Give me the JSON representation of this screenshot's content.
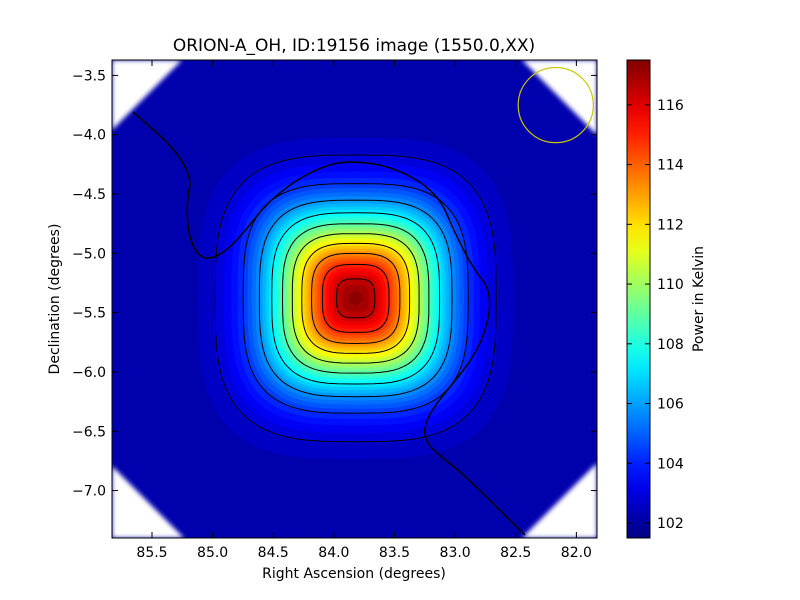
{
  "chart_data": {
    "type": "heatmap",
    "title": "ORION-A_OH, ID:19156 image (1550.0,XX)",
    "xlabel": "Right Ascension (degrees)",
    "ylabel": "Declination (degrees)",
    "colorbar_label": "Power in Kelvin",
    "colormap": "jet",
    "xlim": [
      85.83,
      81.83
    ],
    "ylim": [
      -7.4,
      -3.37
    ],
    "x_ticks": [
      85.5,
      85.0,
      84.5,
      84.0,
      83.5,
      83.0,
      82.5,
      82.0
    ],
    "x_tick_labels": [
      "85.5",
      "85.0",
      "84.5",
      "84.0",
      "83.5",
      "83.0",
      "82.5",
      "82.0"
    ],
    "y_ticks": [
      -3.5,
      -4.0,
      -4.5,
      -5.0,
      -5.5,
      -6.0,
      -6.5,
      -7.0
    ],
    "y_tick_labels": [
      "−3.5",
      "−4.0",
      "−4.5",
      "−5.0",
      "−5.5",
      "−6.0",
      "−6.5",
      "−7.0"
    ],
    "colorbar_range": [
      101.5,
      117.5
    ],
    "colorbar_ticks": [
      102,
      104,
      106,
      108,
      110,
      112,
      114,
      116
    ],
    "colorbar_tick_labels": [
      "102",
      "104",
      "106",
      "108",
      "110",
      "112",
      "114",
      "116"
    ],
    "peak": {
      "ra": 83.82,
      "dec": -5.38,
      "value": 117.3
    },
    "background_value": 102.2,
    "contour_levels": [
      103,
      104.5,
      106,
      107.5,
      109,
      110.5,
      112,
      113.5,
      115,
      116.5
    ],
    "beam_circle": {
      "ra": 82.17,
      "dec": -3.75,
      "radius_deg": 0.31,
      "color": "#c8c800"
    }
  }
}
